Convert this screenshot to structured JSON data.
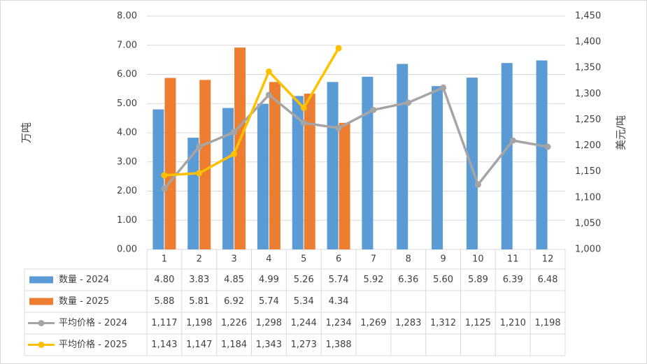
{
  "chart_data": {
    "type": "bar-line-table",
    "y_label": "万吨",
    "y2_label": "美元/吨",
    "categories": [
      "1",
      "2",
      "3",
      "4",
      "5",
      "6",
      "7",
      "8",
      "9",
      "10",
      "11",
      "12"
    ],
    "series": [
      {
        "name": "数量 - 2024",
        "type": "bar",
        "color": "#5b9bd5",
        "values": [
          4.8,
          3.83,
          4.85,
          4.99,
          5.26,
          5.74,
          5.92,
          6.36,
          5.6,
          5.89,
          6.39,
          6.48
        ],
        "value_labels": [
          "4.80",
          "3.83",
          "4.85",
          "4.99",
          "5.26",
          "5.74",
          "5.92",
          "6.36",
          "5.60",
          "5.89",
          "6.39",
          "6.48"
        ]
      },
      {
        "name": "数量 - 2025",
        "type": "bar",
        "color": "#ed7d31",
        "values": [
          5.88,
          5.81,
          6.92,
          5.74,
          5.34,
          4.34,
          null,
          null,
          null,
          null,
          null,
          null
        ],
        "value_labels": [
          "5.88",
          "5.81",
          "6.92",
          "5.74",
          "5.34",
          "4.34",
          null,
          null,
          null,
          null,
          null,
          null
        ]
      },
      {
        "name": "平均价格 - 2024",
        "type": "line",
        "axis": "y2",
        "color": "#a5a5a5",
        "values": [
          1117,
          1198,
          1226,
          1298,
          1244,
          1234,
          1269,
          1283,
          1312,
          1125,
          1210,
          1198
        ],
        "value_labels": [
          "1,117",
          "1,198",
          "1,226",
          "1,298",
          "1,244",
          "1,234",
          "1,269",
          "1,283",
          "1,312",
          "1,125",
          "1,210",
          "1,198"
        ]
      },
      {
        "name": "平均价格 - 2025",
        "type": "line",
        "axis": "y2",
        "color": "#ffc000",
        "values": [
          1143,
          1147,
          1184,
          1343,
          1273,
          1388,
          null,
          null,
          null,
          null,
          null,
          null
        ],
        "value_labels": [
          "1,143",
          "1,147",
          "1,184",
          "1,343",
          "1,273",
          "1,388",
          null,
          null,
          null,
          null,
          null,
          null
        ]
      }
    ],
    "ylim": [
      0,
      8
    ],
    "yticks": [
      {
        "value": 0,
        "label": "0.00"
      },
      {
        "value": 1,
        "label": "1.00"
      },
      {
        "value": 2,
        "label": "2.00"
      },
      {
        "value": 3,
        "label": "3.00"
      },
      {
        "value": 4,
        "label": "4.00"
      },
      {
        "value": 5,
        "label": "5.00"
      },
      {
        "value": 6,
        "label": "6.00"
      },
      {
        "value": 7,
        "label": "7.00"
      },
      {
        "value": 8,
        "label": "8.00"
      }
    ],
    "y2lim": [
      1000,
      1450
    ],
    "y2ticks": [
      {
        "value": 1000,
        "label": "1,000"
      },
      {
        "value": 1050,
        "label": "1,050"
      },
      {
        "value": 1100,
        "label": "1,100"
      },
      {
        "value": 1150,
        "label": "1,150"
      },
      {
        "value": 1200,
        "label": "1,200"
      },
      {
        "value": 1250,
        "label": "1,250"
      },
      {
        "value": 1300,
        "label": "1,300"
      },
      {
        "value": 1350,
        "label": "1,350"
      },
      {
        "value": 1400,
        "label": "1,400"
      },
      {
        "value": 1450,
        "label": "1,450"
      }
    ],
    "grid": true
  }
}
